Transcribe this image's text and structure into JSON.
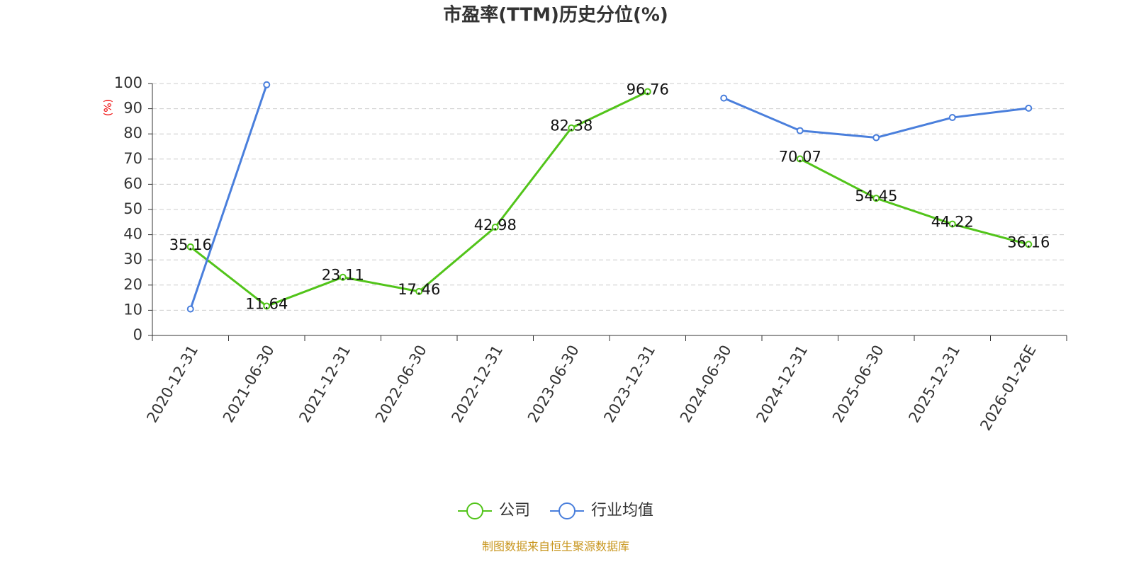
{
  "chart_data": {
    "type": "line",
    "title": "市盈率(TTM)历史分位(%)",
    "y_label": "(%)",
    "categories": [
      "2020-12-31",
      "2021-06-30",
      "2021-12-31",
      "2022-06-30",
      "2022-12-31",
      "2023-06-30",
      "2023-12-31",
      "2024-06-30",
      "2024-12-31",
      "2025-06-30",
      "2025-12-31",
      "2026-01-26E"
    ],
    "series": [
      {
        "name": "公司",
        "color": "#52c41a",
        "values": [
          35.16,
          11.64,
          23.11,
          17.46,
          42.98,
          82.38,
          96.76,
          null,
          70.07,
          54.45,
          44.22,
          36.16
        ],
        "data_labels": true
      },
      {
        "name": "行业均值",
        "color": "#4a7fdc",
        "values": [
          10.5,
          99.5,
          null,
          null,
          null,
          null,
          null,
          94.2,
          81.3,
          78.5,
          86.5,
          90.2
        ],
        "data_labels": false
      }
    ],
    "ylim": [
      0,
      100
    ],
    "yticks": [
      0,
      10,
      20,
      30,
      40,
      50,
      60,
      70,
      80,
      90,
      100
    ],
    "grid": true,
    "legend": "bottom",
    "source": "制图数据来自恒生聚源数据库"
  }
}
